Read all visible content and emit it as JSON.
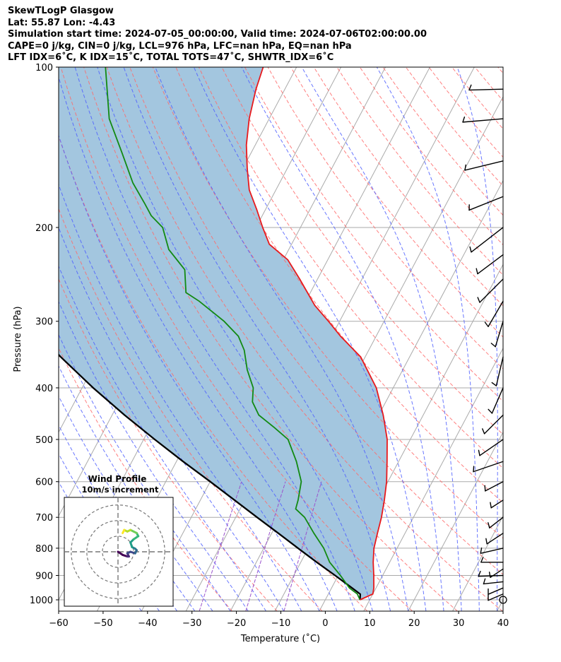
{
  "header": {
    "line1": "SkewTLogP Glasgow",
    "line2": "Lat: 55.87   Lon: -4.43",
    "line3": "Simulation start time: 2024-07-05_00:00:00, Valid time: 2024-07-06T02:00:00.00",
    "line4": "CAPE=0 j/kg, CIN=0 j/kg, LCL=976 hPa, LFC=nan hPa, EQ=nan hPa",
    "line5": "LFT IDX=6˚C, K IDX=15˚C, TOTAL TOTS=47˚C, SHWTR_IDX=6˚C"
  },
  "chart_data": {
    "type": "skewt",
    "xlabel": "Temperature (˚C)",
    "ylabel": "Pressure (hPa)",
    "xlim": [
      -60,
      40
    ],
    "ylim": [
      1050,
      100
    ],
    "x_ticks": [
      -60,
      -50,
      -40,
      -30,
      -20,
      -10,
      0,
      10,
      20,
      30,
      40
    ],
    "y_ticks": [
      1000,
      900,
      800,
      700,
      600,
      500,
      400,
      300,
      200,
      100
    ],
    "colors": {
      "temperature": "#e8191c",
      "dewpoint": "#128a12",
      "parcel": "#000000",
      "fill": "#a3c6df",
      "isotherm": "#aaaaaa",
      "dry_adiabat": "#ff6a6a",
      "moist_adiabat": "#4f5fff",
      "mixing_ratio": "#9a52cc"
    },
    "series": [
      {
        "name": "Temperature",
        "points": [
          [
            7.8,
            1000
          ],
          [
            10,
            975
          ],
          [
            9.5,
            950
          ],
          [
            8,
            900
          ],
          [
            6.3,
            850
          ],
          [
            4.8,
            800
          ],
          [
            3.8,
            750
          ],
          [
            2.8,
            700
          ],
          [
            1.4,
            650
          ],
          [
            -0.3,
            600
          ],
          [
            -2.6,
            550
          ],
          [
            -5.2,
            500
          ],
          [
            -9,
            450
          ],
          [
            -13.8,
            400
          ],
          [
            -21,
            350
          ],
          [
            -28,
            320
          ],
          [
            -32.5,
            300
          ],
          [
            -37.5,
            280
          ],
          [
            -44,
            250
          ],
          [
            -49,
            230
          ],
          [
            -55,
            215
          ],
          [
            -58.5,
            200
          ],
          [
            -62,
            185
          ],
          [
            -66,
            170
          ],
          [
            -69,
            155
          ],
          [
            -72,
            140
          ],
          [
            -74.5,
            125
          ],
          [
            -76.5,
            110
          ],
          [
            -77.5,
            100
          ]
        ]
      },
      {
        "name": "Dewpoint",
        "points": [
          [
            7.8,
            1000
          ],
          [
            6.5,
            975
          ],
          [
            4,
            950
          ],
          [
            0.5,
            900
          ],
          [
            -3.5,
            850
          ],
          [
            -6.5,
            800
          ],
          [
            -10.5,
            750
          ],
          [
            -14.5,
            700
          ],
          [
            -17.5,
            675
          ],
          [
            -18,
            650
          ],
          [
            -19.5,
            600
          ],
          [
            -23,
            550
          ],
          [
            -27.5,
            500
          ],
          [
            -32,
            475
          ],
          [
            -37,
            450
          ],
          [
            -40,
            425
          ],
          [
            -41.5,
            400
          ],
          [
            -45,
            370
          ],
          [
            -48,
            340
          ],
          [
            -51,
            320
          ],
          [
            -56,
            300
          ],
          [
            -64,
            275
          ],
          [
            -68,
            265
          ],
          [
            -71,
            240
          ],
          [
            -77,
            220
          ],
          [
            -81,
            200
          ],
          [
            -85,
            190
          ],
          [
            -88,
            180
          ],
          [
            -93,
            165
          ],
          [
            -99,
            145
          ],
          [
            -106,
            125
          ],
          [
            -113,
            100
          ]
        ]
      },
      {
        "name": "Parcel",
        "points": [
          [
            7.8,
            1000
          ],
          [
            7.2,
            976
          ],
          [
            4.6,
            950
          ],
          [
            -0.7,
            900
          ],
          [
            -6.4,
            850
          ],
          [
            -12.3,
            800
          ],
          [
            -18.5,
            750
          ],
          [
            -25.2,
            700
          ],
          [
            -32.3,
            650
          ],
          [
            -40,
            600
          ],
          [
            -48.5,
            550
          ],
          [
            -57.5,
            500
          ],
          [
            -67.2,
            450
          ],
          [
            -77.5,
            400
          ],
          [
            -88.5,
            350
          ],
          [
            -100.5,
            300
          ],
          [
            -113.5,
            250
          ],
          [
            -127.5,
            200
          ],
          [
            -143.5,
            150
          ],
          [
            -162,
            100
          ]
        ]
      }
    ],
    "wind_barbs": [
      {
        "p": 1000,
        "u": 0,
        "v": 0
      },
      {
        "p": 975,
        "u": 3.5,
        "v": 1.5
      },
      {
        "p": 950,
        "u": 3.5,
        "v": 1.5
      },
      {
        "p": 925,
        "u": 4.6,
        "v": 0.5
      },
      {
        "p": 900,
        "u": 5.8,
        "v": 0.2
      },
      {
        "p": 875,
        "u": 3,
        "v": 2
      },
      {
        "p": 850,
        "u": 5.2,
        "v": 0
      },
      {
        "p": 800,
        "u": 5.3,
        "v": 1.2
      },
      {
        "p": 750,
        "u": 3.8,
        "v": 2.5
      },
      {
        "p": 700,
        "u": 3.2,
        "v": 2.5
      },
      {
        "p": 650,
        "u": 2.8,
        "v": 1.8
      },
      {
        "p": 600,
        "u": 4.2,
        "v": 2.2
      },
      {
        "p": 550,
        "u": 7,
        "v": 2.4
      },
      {
        "p": 500,
        "u": 5.5,
        "v": 3.8
      },
      {
        "p": 450,
        "u": 4.4,
        "v": 4.4
      },
      {
        "p": 400,
        "u": 2.6,
        "v": 6
      },
      {
        "p": 350,
        "u": 1.6,
        "v": 6.8
      },
      {
        "p": 300,
        "u": 1.8,
        "v": 6
      },
      {
        "p": 275,
        "u": 3.5,
        "v": 6
      },
      {
        "p": 250,
        "u": 5.5,
        "v": 5.5
      },
      {
        "p": 225,
        "u": 6,
        "v": 4.5
      },
      {
        "p": 200,
        "u": 7.5,
        "v": 5.8
      },
      {
        "p": 175,
        "u": 8,
        "v": 3.2
      },
      {
        "p": 150,
        "u": 9,
        "v": 2.2
      },
      {
        "p": 125,
        "u": 9.5,
        "v": 0.8
      },
      {
        "p": 110,
        "u": 8,
        "v": 0.2
      }
    ],
    "hodograph": {
      "title": "Wind Profile",
      "subtitle": "10m/s increment",
      "ring_speeds": [
        10,
        20,
        30
      ],
      "max_speed": 30,
      "points": [
        [
          0,
          0
        ],
        [
          3,
          -2
        ],
        [
          6,
          -3
        ],
        [
          7,
          -3
        ],
        [
          6,
          -1
        ],
        [
          8,
          0
        ],
        [
          11,
          -1
        ],
        [
          12,
          1
        ],
        [
          11,
          2
        ],
        [
          9,
          3
        ],
        [
          8,
          6
        ],
        [
          10,
          8
        ],
        [
          13,
          10
        ],
        [
          12,
          12
        ],
        [
          10,
          13
        ],
        [
          8,
          14
        ],
        [
          6,
          13
        ],
        [
          4,
          14
        ],
        [
          3,
          12
        ]
      ]
    }
  }
}
